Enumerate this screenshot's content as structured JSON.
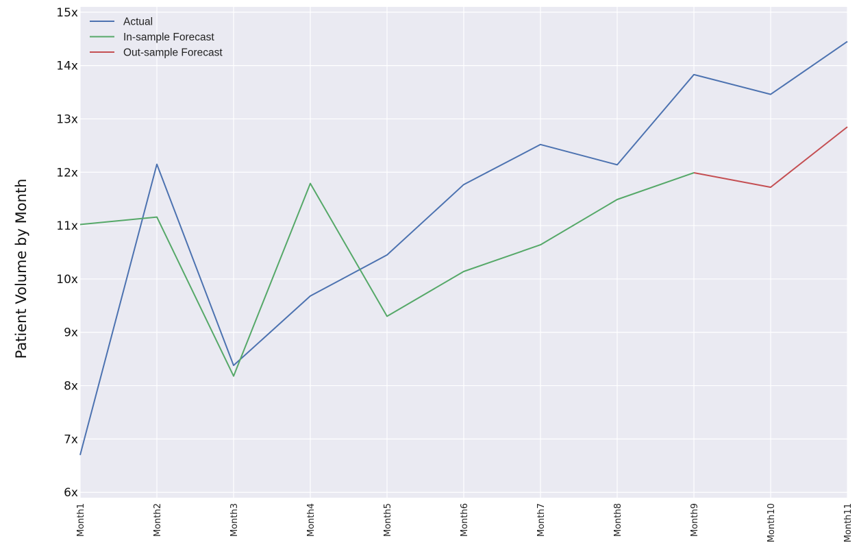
{
  "chart_data": {
    "type": "line",
    "title": "",
    "xlabel": "",
    "ylabel": "Patient Volume by Month",
    "categories": [
      "Month1",
      "Month2",
      "Month3",
      "Month4",
      "Month5",
      "Month6",
      "Month7",
      "Month8",
      "Month9",
      "Month10",
      "Month11"
    ],
    "ylim": [
      5.9,
      15.1
    ],
    "yticks": [
      6,
      7,
      8,
      9,
      10,
      11,
      12,
      13,
      14,
      15
    ],
    "ytick_labels": [
      "6x",
      "7x",
      "8x",
      "9x",
      "10x",
      "11x",
      "12x",
      "13x",
      "14x",
      "15x"
    ],
    "grid": true,
    "legend_position": "top-left",
    "series": [
      {
        "name": "Actual",
        "color": "#4c72b0",
        "values": [
          6.7,
          12.15,
          8.38,
          9.68,
          10.45,
          11.77,
          12.52,
          12.14,
          13.83,
          13.46,
          14.45
        ]
      },
      {
        "name": "In-sample Forecast",
        "color": "#55a868",
        "values": [
          11.02,
          11.16,
          8.18,
          11.79,
          9.3,
          10.14,
          10.64,
          11.49,
          11.99,
          null,
          null
        ]
      },
      {
        "name": "Out-sample Forecast",
        "color": "#c44e52",
        "values": [
          null,
          null,
          null,
          null,
          null,
          null,
          null,
          null,
          11.99,
          11.72,
          12.85
        ]
      }
    ]
  },
  "colors": {
    "plot_background": "#eaeaf2",
    "grid": "#ffffff"
  }
}
